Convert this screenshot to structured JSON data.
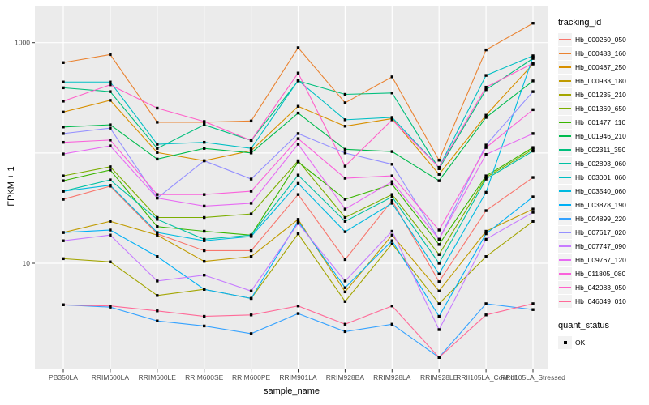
{
  "figure": {
    "panel_bg": "#EBEBEB",
    "grid_color": "#FFFFFF",
    "tick_color": "#333333",
    "tick_label_color": "#4D4D4D",
    "point_color": "#000000"
  },
  "legend": {
    "tracking_title": "tracking_id",
    "quant_title": "quant_status",
    "quant_label": "OK"
  },
  "chart_data": {
    "type": "line",
    "title": "",
    "xlabel": "sample_name",
    "ylabel": "FPKM + 1",
    "y_scale": "log10",
    "ylim": [
      1.1,
      2100
    ],
    "grid": "on",
    "legend_position": "right",
    "y_ticks": [
      {
        "label": "1000",
        "value": 1000
      },
      {
        "label": "10",
        "value": 10
      }
    ],
    "y_gridlines": [
      1000,
      100,
      10
    ],
    "x_categories": [
      "PB350LA",
      "RRIM600LA",
      "RRIM600LE",
      "RRIM600SE",
      "RRIM600PE",
      "RRIM901LA",
      "RRIM928BA",
      "RRIM928LA",
      "RRIM928LE",
      "RRII105LA_Control",
      "RRII105LA_Stressed"
    ],
    "point_shape": "square",
    "quant_status_all_points": "OK",
    "series": [
      {
        "name": "Hb_000260_050",
        "color": "#F8766D",
        "values": [
          38,
          50,
          18.5,
          13,
          13,
          42,
          10.8,
          37,
          6.8,
          30,
          60
        ]
      },
      {
        "name": "Hb_000483_160",
        "color": "#EA8331",
        "values": [
          660,
          780,
          190,
          190,
          195,
          900,
          285,
          490,
          86,
          860,
          1500
        ]
      },
      {
        "name": "Hb_000487_250",
        "color": "#D89000",
        "values": [
          235,
          300,
          101,
          85,
          105,
          265,
          175,
          205,
          64,
          220,
          640
        ]
      },
      {
        "name": "Hb_000933_180",
        "color": "#C09B00",
        "values": [
          19,
          24,
          18,
          10.4,
          11.5,
          25,
          5.5,
          18,
          5.6,
          19.5,
          31
        ]
      },
      {
        "name": "Hb_001235_210",
        "color": "#A3A500",
        "values": [
          11,
          10.3,
          5.1,
          5.8,
          4.8,
          18.5,
          4.5,
          15,
          4.3,
          11.5,
          24
        ]
      },
      {
        "name": "Hb_001369_650",
        "color": "#7CAE00",
        "values": [
          62,
          75,
          26,
          26,
          28,
          85,
          26,
          42,
          12,
          60,
          108
        ]
      },
      {
        "name": "Hb_001477_110",
        "color": "#39B600",
        "values": [
          56,
          70,
          21.5,
          19.5,
          18,
          83,
          38,
          52,
          14.8,
          62,
          112
        ]
      },
      {
        "name": "Hb_001946_210",
        "color": "#00BB4E",
        "values": [
          172,
          180,
          88,
          110,
          100,
          230,
          108,
          103,
          56,
          210,
          450
        ]
      },
      {
        "name": "Hb_002311_350",
        "color": "#00BF7D",
        "values": [
          390,
          360,
          110,
          180,
          130,
          450,
          340,
          350,
          72,
          375,
          720
        ]
      },
      {
        "name": "Hb_002893_060",
        "color": "#00C1A3",
        "values": [
          45,
          57,
          25,
          16.5,
          18,
          63,
          24,
          40,
          10,
          58,
          104
        ]
      },
      {
        "name": "Hb_003001_060",
        "color": "#00BFC4",
        "values": [
          440,
          440,
          120,
          125,
          110,
          455,
          200,
          210,
          74,
          505,
          760
        ]
      },
      {
        "name": "Hb_003540_060",
        "color": "#00BAE0",
        "values": [
          45,
          51,
          19,
          16,
          17.5,
          53,
          19.3,
          35,
          8,
          44,
          740
        ]
      },
      {
        "name": "Hb_003878_190",
        "color": "#00B0F6",
        "values": [
          19,
          20,
          11.5,
          5.8,
          4.8,
          24,
          6,
          16,
          3.3,
          18.5,
          40
        ]
      },
      {
        "name": "Hb_004899_220",
        "color": "#35A2FF",
        "values": [
          4.2,
          4.0,
          3.0,
          2.7,
          2.3,
          3.5,
          2.4,
          2.8,
          1.4,
          4.3,
          3.8
        ]
      },
      {
        "name": "Hb_007617_020",
        "color": "#9590FF",
        "values": [
          150,
          168,
          39,
          85,
          58,
          150,
          100,
          79,
          16.5,
          118,
          360
        ]
      },
      {
        "name": "Hb_007747_090",
        "color": "#C77CFF",
        "values": [
          16,
          18,
          6.9,
          7.8,
          5.6,
          23,
          6.9,
          19.5,
          2.5,
          16.5,
          29
        ]
      },
      {
        "name": "Hb_009767_120",
        "color": "#E76BF3",
        "values": [
          98,
          116,
          39,
          33,
          35,
          120,
          31,
          55,
          16.5,
          97,
          150
        ]
      },
      {
        "name": "Hb_011805_080",
        "color": "#FA62DB",
        "values": [
          125,
          131,
          42,
          42,
          45,
          135,
          59,
          62,
          20,
          112,
          247
        ]
      },
      {
        "name": "Hb_042083_050",
        "color": "#FF61C9",
        "values": [
          295,
          415,
          255,
          193,
          130,
          530,
          76,
          200,
          74,
          395,
          650
        ]
      },
      {
        "name": "Hb_046049_010",
        "color": "#FF6A98",
        "values": [
          4.2,
          4.1,
          3.7,
          3.3,
          3.4,
          4.1,
          2.8,
          4.1,
          1.4,
          3.4,
          4.3
        ]
      }
    ]
  }
}
